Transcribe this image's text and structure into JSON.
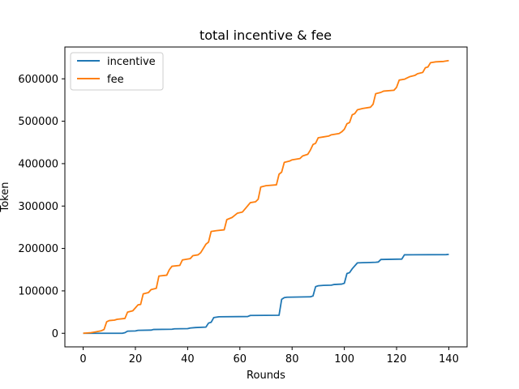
{
  "chart_data": {
    "type": "line",
    "title": "total incentive & fee",
    "xlabel": "Rounds",
    "ylabel": "Token",
    "xlim": [
      -7,
      147
    ],
    "ylim": [
      -32000,
      675000
    ],
    "xticks": [
      0,
      20,
      40,
      60,
      80,
      100,
      120,
      140
    ],
    "yticks": [
      0,
      100000,
      200000,
      300000,
      400000,
      500000,
      600000
    ],
    "grid": false,
    "legend_position": "top-left",
    "series": [
      {
        "name": "incentive",
        "color": "#1f77b4",
        "points": [
          [
            0,
            0
          ],
          [
            15,
            0
          ],
          [
            16,
            1500
          ],
          [
            17,
            5000
          ],
          [
            20,
            5500
          ],
          [
            21,
            7000
          ],
          [
            26,
            7500
          ],
          [
            27,
            9000
          ],
          [
            34,
            9500
          ],
          [
            35,
            10500
          ],
          [
            40,
            11000
          ],
          [
            41,
            12500
          ],
          [
            43,
            13500
          ],
          [
            47,
            14500
          ],
          [
            48,
            24000
          ],
          [
            49,
            26000
          ],
          [
            50,
            37000
          ],
          [
            52,
            39000
          ],
          [
            63,
            39500
          ],
          [
            64,
            42000
          ],
          [
            75,
            42500
          ],
          [
            76,
            80000
          ],
          [
            77,
            84000
          ],
          [
            78,
            85000
          ],
          [
            87,
            86000
          ],
          [
            88,
            88000
          ],
          [
            89,
            110000
          ],
          [
            90,
            112000
          ],
          [
            92,
            113000
          ],
          [
            95,
            113500
          ],
          [
            96,
            115000
          ],
          [
            99,
            116000
          ],
          [
            100,
            118000
          ],
          [
            101,
            141000
          ],
          [
            102,
            143000
          ],
          [
            103,
            152000
          ],
          [
            105,
            166000
          ],
          [
            107,
            166500
          ],
          [
            110,
            167000
          ],
          [
            112,
            167500
          ],
          [
            113,
            168000
          ],
          [
            114,
            174000
          ],
          [
            122,
            175000
          ],
          [
            123,
            185000
          ],
          [
            139,
            185500
          ],
          [
            140,
            186000
          ]
        ]
      },
      {
        "name": "fee",
        "color": "#ff7f0e",
        "points": [
          [
            0,
            0
          ],
          [
            3,
            1500
          ],
          [
            5,
            3500
          ],
          [
            7,
            6000
          ],
          [
            8,
            9000
          ],
          [
            9,
            27000
          ],
          [
            10,
            30000
          ],
          [
            12,
            31000
          ],
          [
            13,
            33000
          ],
          [
            16,
            35000
          ],
          [
            17,
            50000
          ],
          [
            19,
            53000
          ],
          [
            20,
            60000
          ],
          [
            21,
            67000
          ],
          [
            22,
            68000
          ],
          [
            23,
            93000
          ],
          [
            25,
            96000
          ],
          [
            26,
            103000
          ],
          [
            28,
            106000
          ],
          [
            29,
            135000
          ],
          [
            32,
            137000
          ],
          [
            33,
            150000
          ],
          [
            34,
            158000
          ],
          [
            37,
            160000
          ],
          [
            38,
            173000
          ],
          [
            41,
            176000
          ],
          [
            42,
            183000
          ],
          [
            44,
            185000
          ],
          [
            45,
            190000
          ],
          [
            47,
            210000
          ],
          [
            48,
            215000
          ],
          [
            49,
            240000
          ],
          [
            51,
            242000
          ],
          [
            54,
            244000
          ],
          [
            55,
            268000
          ],
          [
            57,
            273000
          ],
          [
            58,
            278000
          ],
          [
            59,
            283000
          ],
          [
            61,
            286000
          ],
          [
            64,
            308000
          ],
          [
            66,
            310000
          ],
          [
            67,
            316000
          ],
          [
            68,
            345000
          ],
          [
            70,
            348000
          ],
          [
            74,
            350000
          ],
          [
            75,
            375000
          ],
          [
            76,
            380000
          ],
          [
            77,
            403000
          ],
          [
            79,
            406000
          ],
          [
            80,
            409000
          ],
          [
            83,
            412000
          ],
          [
            84,
            418000
          ],
          [
            86,
            422000
          ],
          [
            87,
            432000
          ],
          [
            88,
            445000
          ],
          [
            89,
            448000
          ],
          [
            90,
            461000
          ],
          [
            92,
            463000
          ],
          [
            94,
            465000
          ],
          [
            95,
            468000
          ],
          [
            98,
            471000
          ],
          [
            99,
            475000
          ],
          [
            100,
            481000
          ],
          [
            101,
            494000
          ],
          [
            102,
            497000
          ],
          [
            103,
            515000
          ],
          [
            104,
            518000
          ],
          [
            105,
            527000
          ],
          [
            107,
            530000
          ],
          [
            110,
            533000
          ],
          [
            111,
            540000
          ],
          [
            112,
            565000
          ],
          [
            114,
            568000
          ],
          [
            115,
            571000
          ],
          [
            119,
            573000
          ],
          [
            120,
            580000
          ],
          [
            121,
            597000
          ],
          [
            123,
            599000
          ],
          [
            124,
            602000
          ],
          [
            125,
            605000
          ],
          [
            127,
            608000
          ],
          [
            128,
            612000
          ],
          [
            130,
            615000
          ],
          [
            131,
            626000
          ],
          [
            132,
            628000
          ],
          [
            133,
            638000
          ],
          [
            135,
            640000
          ],
          [
            138,
            641000
          ],
          [
            140,
            643000
          ]
        ]
      }
    ]
  }
}
